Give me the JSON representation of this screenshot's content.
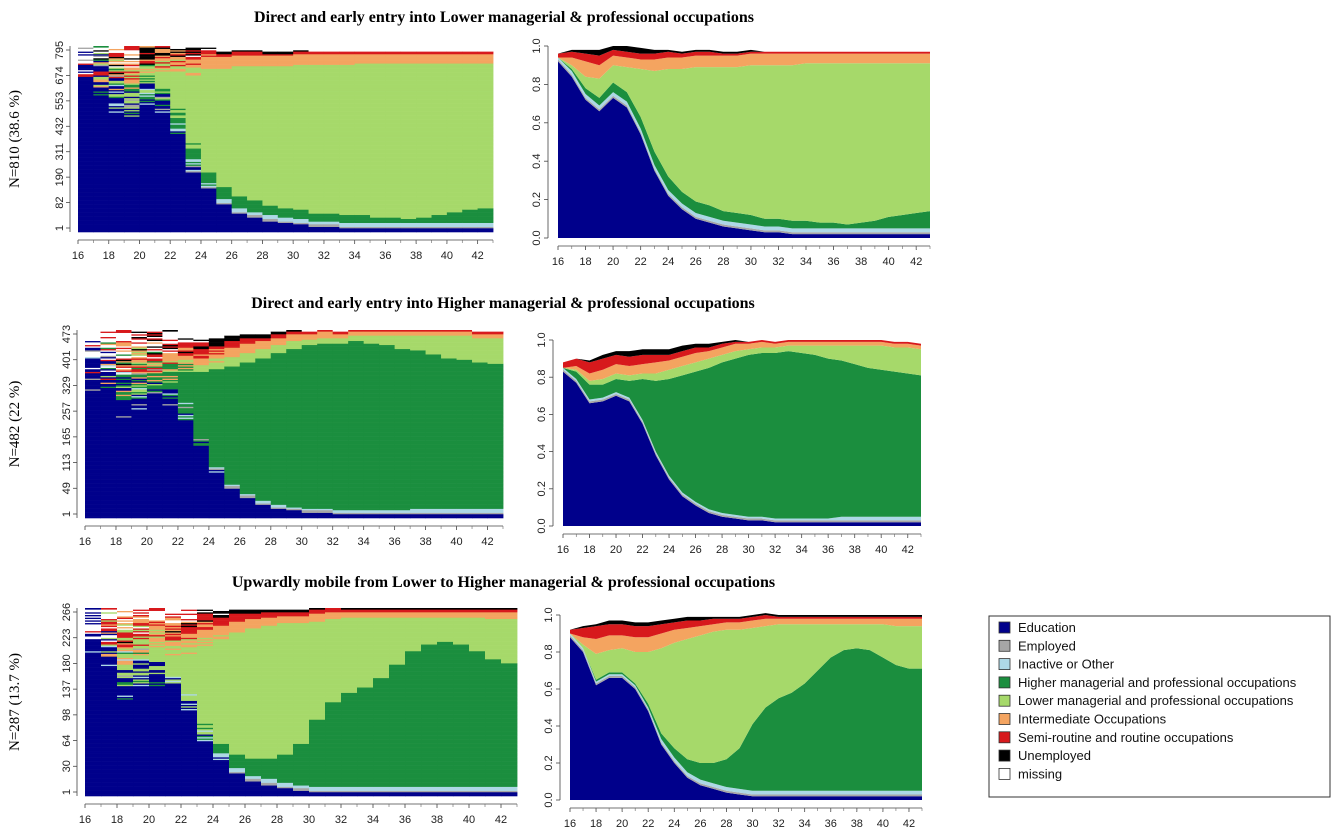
{
  "states": [
    {
      "key": "edu",
      "label": "Education",
      "color": "#00008B"
    },
    {
      "key": "emp",
      "label": "Employed",
      "color": "#A6A6A6"
    },
    {
      "key": "ina",
      "label": "Inactive or Other",
      "color": "#ADD8E6"
    },
    {
      "key": "hmp",
      "label": "Higher managerial and professional occupations",
      "color": "#1B8E3E"
    },
    {
      "key": "lmp",
      "label": "Lower managerial and professional occupations",
      "color": "#A6D96A"
    },
    {
      "key": "int",
      "label": "Intermediate Occupations",
      "color": "#F4A460"
    },
    {
      "key": "semi",
      "label": "Semi-routine and routine occupations",
      "color": "#D7191C"
    },
    {
      "key": "une",
      "label": "Unemployed",
      "color": "#000000"
    },
    {
      "key": "mis",
      "label": "missing",
      "color": "#FFFFFF"
    }
  ],
  "chart_data": [
    {
      "type": "area",
      "title": "Direct and early entry into Lower managerial & professional occupations",
      "ylabel": "N=810 (38.6 %)",
      "x": [
        16,
        17,
        18,
        19,
        20,
        21,
        22,
        23,
        24,
        25,
        26,
        27,
        28,
        29,
        30,
        31,
        32,
        33,
        34,
        35,
        36,
        37,
        38,
        39,
        40,
        41,
        42,
        43
      ],
      "xticks": [
        "16",
        "18",
        "20",
        "22",
        "24",
        "26",
        "28",
        "30",
        "32",
        "34",
        "36",
        "38",
        "40",
        "42"
      ],
      "index_ticks": [
        "1",
        "82",
        "190",
        "311",
        "432",
        "553",
        "674",
        "795"
      ],
      "ylim": [
        0,
        1
      ],
      "yticks": [
        "0.0",
        "0.2",
        "0.4",
        "0.6",
        "0.8",
        "1.0"
      ],
      "series": [
        {
          "state": "edu",
          "values": [
            0.92,
            0.84,
            0.72,
            0.66,
            0.73,
            0.68,
            0.54,
            0.35,
            0.22,
            0.15,
            0.1,
            0.08,
            0.06,
            0.05,
            0.04,
            0.03,
            0.03,
            0.02,
            0.02,
            0.02,
            0.02,
            0.02,
            0.02,
            0.02,
            0.02,
            0.02,
            0.02,
            0.02
          ]
        },
        {
          "state": "emp",
          "values": [
            0.01,
            0.01,
            0.01,
            0.01,
            0.01,
            0.01,
            0.01,
            0.01,
            0.01,
            0.01,
            0.01,
            0.01,
            0.01,
            0.01,
            0.01,
            0.01,
            0.01,
            0.01,
            0.01,
            0.01,
            0.01,
            0.01,
            0.01,
            0.01,
            0.01,
            0.01,
            0.01,
            0.01
          ]
        },
        {
          "state": "ina",
          "values": [
            0.01,
            0.02,
            0.02,
            0.02,
            0.02,
            0.02,
            0.02,
            0.02,
            0.02,
            0.02,
            0.02,
            0.02,
            0.02,
            0.02,
            0.02,
            0.02,
            0.02,
            0.02,
            0.02,
            0.02,
            0.02,
            0.02,
            0.02,
            0.02,
            0.02,
            0.02,
            0.02,
            0.02
          ]
        },
        {
          "state": "hmp",
          "values": [
            0.0,
            0.01,
            0.03,
            0.04,
            0.05,
            0.05,
            0.06,
            0.07,
            0.07,
            0.06,
            0.06,
            0.06,
            0.05,
            0.05,
            0.05,
            0.04,
            0.04,
            0.04,
            0.04,
            0.03,
            0.03,
            0.02,
            0.03,
            0.04,
            0.06,
            0.07,
            0.08,
            0.09
          ]
        },
        {
          "state": "lmp",
          "values": [
            0.0,
            0.02,
            0.06,
            0.1,
            0.09,
            0.13,
            0.25,
            0.42,
            0.56,
            0.64,
            0.7,
            0.72,
            0.75,
            0.76,
            0.78,
            0.8,
            0.8,
            0.81,
            0.82,
            0.83,
            0.83,
            0.84,
            0.83,
            0.82,
            0.8,
            0.79,
            0.78,
            0.77
          ]
        },
        {
          "state": "int",
          "values": [
            0.0,
            0.04,
            0.08,
            0.07,
            0.05,
            0.05,
            0.05,
            0.06,
            0.06,
            0.06,
            0.06,
            0.06,
            0.06,
            0.06,
            0.06,
            0.06,
            0.06,
            0.06,
            0.05,
            0.05,
            0.05,
            0.05,
            0.05,
            0.05,
            0.05,
            0.05,
            0.05,
            0.05
          ]
        },
        {
          "state": "semi",
          "values": [
            0.02,
            0.03,
            0.04,
            0.05,
            0.03,
            0.03,
            0.03,
            0.03,
            0.03,
            0.02,
            0.02,
            0.02,
            0.01,
            0.01,
            0.01,
            0.01,
            0.01,
            0.01,
            0.01,
            0.01,
            0.01,
            0.01,
            0.01,
            0.01,
            0.01,
            0.01,
            0.01,
            0.01
          ]
        },
        {
          "state": "une",
          "values": [
            0.0,
            0.01,
            0.02,
            0.03,
            0.02,
            0.03,
            0.03,
            0.02,
            0.01,
            0.01,
            0.01,
            0.01,
            0.01,
            0.01,
            0.01,
            0.0,
            0.0,
            0.0,
            0.0,
            0.0,
            0.0,
            0.0,
            0.0,
            0.0,
            0.0,
            0.0,
            0.0,
            0.0
          ]
        }
      ]
    },
    {
      "type": "area",
      "title": "Direct and early entry into Higher managerial & professional occupations",
      "ylabel": "N=482 (22 %)",
      "x": [
        16,
        17,
        18,
        19,
        20,
        21,
        22,
        23,
        24,
        25,
        26,
        27,
        28,
        29,
        30,
        31,
        32,
        33,
        34,
        35,
        36,
        37,
        38,
        39,
        40,
        41,
        42,
        43
      ],
      "xticks": [
        "16",
        "18",
        "20",
        "22",
        "24",
        "26",
        "28",
        "30",
        "32",
        "34",
        "36",
        "38",
        "40",
        "42"
      ],
      "index_ticks": [
        "1",
        "49",
        "113",
        "165",
        "257",
        "329",
        "401",
        "473"
      ],
      "ylim": [
        0,
        1
      ],
      "yticks": [
        "0.0",
        "0.2",
        "0.4",
        "0.6",
        "0.8",
        "1.0"
      ],
      "series": [
        {
          "state": "edu",
          "values": [
            0.83,
            0.77,
            0.66,
            0.67,
            0.7,
            0.67,
            0.55,
            0.38,
            0.25,
            0.16,
            0.11,
            0.07,
            0.05,
            0.04,
            0.03,
            0.03,
            0.02,
            0.02,
            0.02,
            0.02,
            0.02,
            0.02,
            0.02,
            0.02,
            0.02,
            0.02,
            0.02,
            0.02
          ]
        },
        {
          "state": "emp",
          "values": [
            0.01,
            0.01,
            0.01,
            0.01,
            0.01,
            0.01,
            0.01,
            0.01,
            0.01,
            0.01,
            0.01,
            0.01,
            0.01,
            0.01,
            0.01,
            0.01,
            0.01,
            0.01,
            0.01,
            0.01,
            0.01,
            0.01,
            0.01,
            0.01,
            0.01,
            0.01,
            0.01,
            0.01
          ]
        },
        {
          "state": "ina",
          "values": [
            0.01,
            0.01,
            0.01,
            0.01,
            0.01,
            0.01,
            0.01,
            0.01,
            0.01,
            0.01,
            0.01,
            0.01,
            0.01,
            0.01,
            0.01,
            0.01,
            0.01,
            0.01,
            0.01,
            0.01,
            0.01,
            0.02,
            0.02,
            0.02,
            0.02,
            0.02,
            0.02,
            0.02
          ]
        },
        {
          "state": "hmp",
          "values": [
            0.0,
            0.04,
            0.08,
            0.07,
            0.07,
            0.09,
            0.22,
            0.38,
            0.52,
            0.63,
            0.7,
            0.76,
            0.81,
            0.84,
            0.87,
            0.88,
            0.89,
            0.9,
            0.89,
            0.88,
            0.86,
            0.84,
            0.82,
            0.8,
            0.79,
            0.78,
            0.77,
            0.76
          ]
        },
        {
          "state": "lmp",
          "values": [
            0.0,
            0.01,
            0.02,
            0.03,
            0.03,
            0.03,
            0.03,
            0.04,
            0.05,
            0.05,
            0.05,
            0.05,
            0.04,
            0.04,
            0.03,
            0.03,
            0.03,
            0.03,
            0.04,
            0.05,
            0.07,
            0.08,
            0.1,
            0.12,
            0.13,
            0.13,
            0.14,
            0.14
          ]
        },
        {
          "state": "int",
          "values": [
            0.0,
            0.02,
            0.04,
            0.05,
            0.05,
            0.05,
            0.05,
            0.06,
            0.05,
            0.05,
            0.05,
            0.04,
            0.04,
            0.04,
            0.03,
            0.03,
            0.02,
            0.02,
            0.02,
            0.02,
            0.02,
            0.02,
            0.02,
            0.02,
            0.02,
            0.02,
            0.02,
            0.02
          ]
        },
        {
          "state": "semi",
          "values": [
            0.03,
            0.04,
            0.06,
            0.06,
            0.05,
            0.05,
            0.05,
            0.04,
            0.03,
            0.03,
            0.03,
            0.02,
            0.02,
            0.01,
            0.01,
            0.01,
            0.01,
            0.01,
            0.01,
            0.01,
            0.01,
            0.01,
            0.01,
            0.01,
            0.01,
            0.01,
            0.01,
            0.01
          ]
        },
        {
          "state": "une",
          "values": [
            0.0,
            0.0,
            0.01,
            0.02,
            0.02,
            0.03,
            0.03,
            0.03,
            0.03,
            0.03,
            0.02,
            0.02,
            0.01,
            0.01,
            0.0,
            0.0,
            0.0,
            0.0,
            0.0,
            0.0,
            0.0,
            0.0,
            0.0,
            0.0,
            0.0,
            0.0,
            0.0,
            0.0
          ]
        }
      ]
    },
    {
      "type": "area",
      "title": "Upwardly mobile from Lower to Higher managerial & professional occupations",
      "ylabel": "N=287 (13.7 %)",
      "x": [
        16,
        17,
        18,
        19,
        20,
        21,
        22,
        23,
        24,
        25,
        26,
        27,
        28,
        29,
        30,
        31,
        32,
        33,
        34,
        35,
        36,
        37,
        38,
        39,
        40,
        41,
        42,
        43
      ],
      "xticks": [
        "16",
        "18",
        "20",
        "22",
        "24",
        "26",
        "28",
        "30",
        "32",
        "34",
        "36",
        "38",
        "40",
        "42"
      ],
      "index_ticks": [
        "1",
        "30",
        "64",
        "98",
        "137",
        "180",
        "223",
        "266"
      ],
      "ylim": [
        0,
        1
      ],
      "yticks": [
        "0.0",
        "0.2",
        "0.4",
        "0.6",
        "0.8",
        "1.0"
      ],
      "series": [
        {
          "state": "edu",
          "values": [
            0.88,
            0.8,
            0.62,
            0.66,
            0.66,
            0.6,
            0.48,
            0.3,
            0.2,
            0.12,
            0.08,
            0.06,
            0.04,
            0.03,
            0.02,
            0.02,
            0.02,
            0.02,
            0.02,
            0.02,
            0.02,
            0.02,
            0.02,
            0.02,
            0.02,
            0.02,
            0.02,
            0.02
          ]
        },
        {
          "state": "emp",
          "values": [
            0.01,
            0.01,
            0.01,
            0.01,
            0.01,
            0.01,
            0.01,
            0.01,
            0.01,
            0.01,
            0.01,
            0.01,
            0.01,
            0.01,
            0.01,
            0.01,
            0.01,
            0.01,
            0.01,
            0.01,
            0.01,
            0.01,
            0.01,
            0.01,
            0.01,
            0.01,
            0.01,
            0.01
          ]
        },
        {
          "state": "ina",
          "values": [
            0.01,
            0.01,
            0.01,
            0.01,
            0.01,
            0.01,
            0.01,
            0.02,
            0.02,
            0.02,
            0.02,
            0.02,
            0.02,
            0.02,
            0.02,
            0.02,
            0.02,
            0.02,
            0.02,
            0.02,
            0.02,
            0.02,
            0.02,
            0.02,
            0.02,
            0.02,
            0.02,
            0.02
          ]
        },
        {
          "state": "hmp",
          "values": [
            0.0,
            0.0,
            0.01,
            0.01,
            0.01,
            0.01,
            0.02,
            0.03,
            0.05,
            0.07,
            0.09,
            0.11,
            0.15,
            0.22,
            0.36,
            0.45,
            0.5,
            0.53,
            0.58,
            0.65,
            0.72,
            0.76,
            0.77,
            0.76,
            0.72,
            0.68,
            0.66,
            0.66
          ]
        },
        {
          "state": "lmp",
          "values": [
            0.0,
            0.02,
            0.14,
            0.12,
            0.13,
            0.17,
            0.28,
            0.46,
            0.57,
            0.65,
            0.69,
            0.71,
            0.7,
            0.64,
            0.52,
            0.44,
            0.4,
            0.37,
            0.32,
            0.25,
            0.18,
            0.14,
            0.13,
            0.14,
            0.18,
            0.21,
            0.23,
            0.23
          ]
        },
        {
          "state": "int",
          "values": [
            0.0,
            0.04,
            0.08,
            0.08,
            0.07,
            0.08,
            0.08,
            0.08,
            0.07,
            0.06,
            0.05,
            0.04,
            0.04,
            0.04,
            0.04,
            0.04,
            0.03,
            0.03,
            0.03,
            0.03,
            0.03,
            0.03,
            0.03,
            0.03,
            0.03,
            0.04,
            0.04,
            0.04
          ]
        },
        {
          "state": "semi",
          "values": [
            0.02,
            0.05,
            0.07,
            0.06,
            0.06,
            0.06,
            0.06,
            0.05,
            0.04,
            0.04,
            0.03,
            0.03,
            0.02,
            0.02,
            0.02,
            0.02,
            0.01,
            0.01,
            0.01,
            0.01,
            0.01,
            0.01,
            0.01,
            0.01,
            0.01,
            0.01,
            0.01,
            0.01
          ]
        },
        {
          "state": "une",
          "values": [
            0.0,
            0.01,
            0.01,
            0.02,
            0.02,
            0.02,
            0.02,
            0.02,
            0.02,
            0.02,
            0.02,
            0.01,
            0.01,
            0.01,
            0.01,
            0.01,
            0.01,
            0.01,
            0.01,
            0.01,
            0.01,
            0.01,
            0.01,
            0.01,
            0.01,
            0.01,
            0.01,
            0.01
          ]
        }
      ]
    }
  ]
}
